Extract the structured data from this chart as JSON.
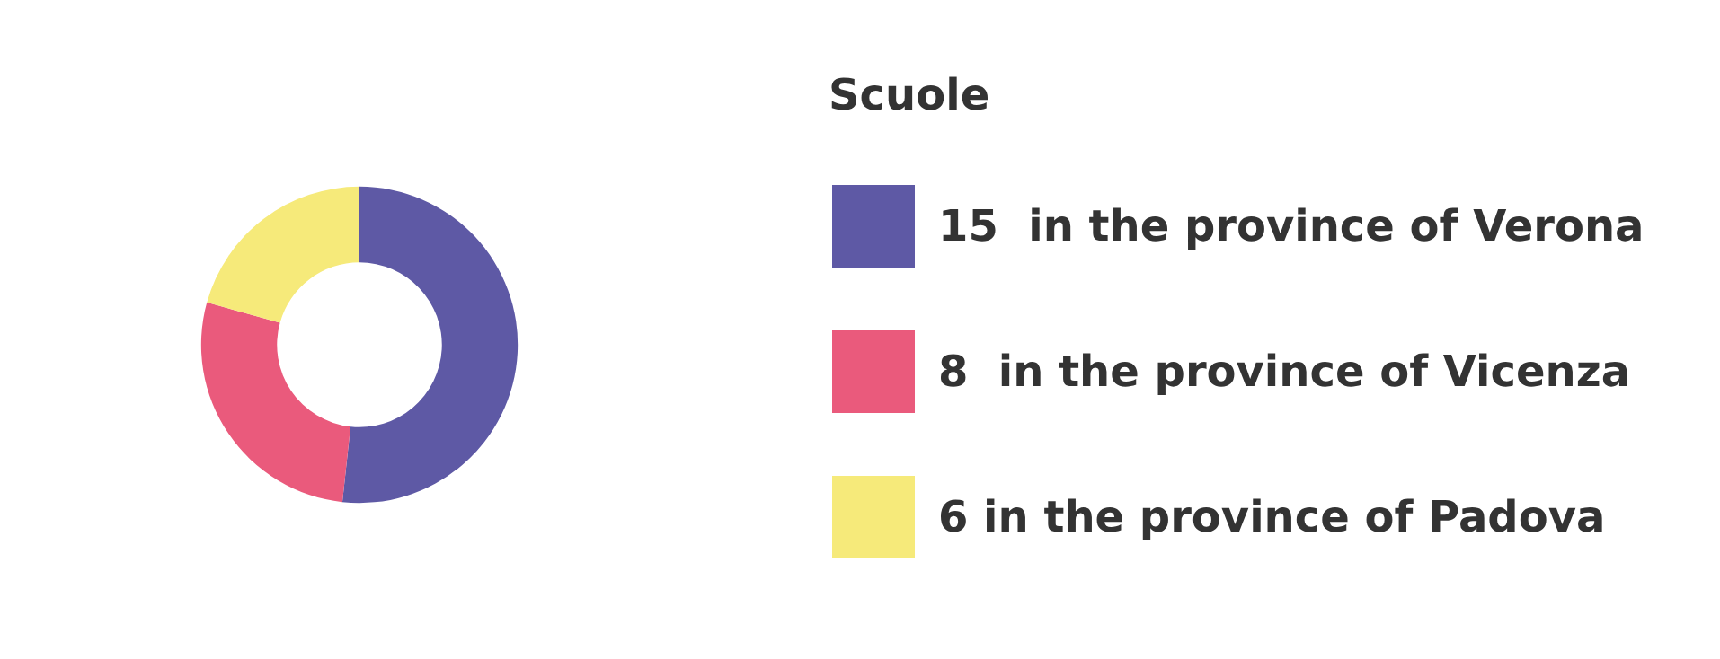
{
  "chart_data": {
    "type": "donut",
    "legend_title": "Scuole",
    "legend": "right",
    "categories": [
      "15  in the province of Verona",
      "8  in the province of Vicenza",
      "6 in the province of Padova"
    ],
    "values": [
      15,
      8,
      6
    ],
    "colors": [
      "#5e59a5",
      "#ea5a7c",
      "#f6ea7a"
    ]
  }
}
